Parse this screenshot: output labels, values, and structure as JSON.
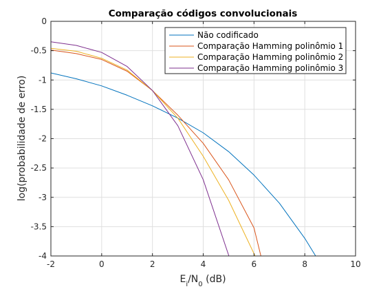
{
  "chart_data": {
    "type": "line",
    "title": "Comparação códigos convolucionais",
    "xlabel": {
      "base": "E",
      "sub1": "i",
      "mid": "/N",
      "sub2": "0",
      "tail": " (dB)"
    },
    "ylabel": "log(probabilidade de erro)",
    "xlim": [
      -2,
      10
    ],
    "ylim": [
      -4,
      0
    ],
    "xticks": [
      -2,
      0,
      2,
      4,
      6,
      8,
      10
    ],
    "yticks": [
      0,
      -0.5,
      -1,
      -1.5,
      -2,
      -2.5,
      -3,
      -3.5,
      -4
    ],
    "grid": true,
    "legend_position": "top-right",
    "series": [
      {
        "name": "Não codificado",
        "color": "#0072BD",
        "x": [
          -2,
          -1,
          0,
          1,
          2,
          3,
          4,
          5,
          6,
          7,
          8,
          8.5
        ],
        "y": [
          -0.88,
          -0.98,
          -1.1,
          -1.26,
          -1.44,
          -1.65,
          -1.9,
          -2.22,
          -2.62,
          -3.1,
          -3.7,
          -4.05
        ]
      },
      {
        "name": "Comparação Hamming polinômio 1",
        "color": "#D95319",
        "x": [
          -2,
          -1,
          0,
          1,
          2,
          3,
          4,
          5,
          6,
          6.3
        ],
        "y": [
          -0.49,
          -0.55,
          -0.65,
          -0.85,
          -1.18,
          -1.6,
          -2.08,
          -2.7,
          -3.52,
          -4.05
        ]
      },
      {
        "name": "Comparação Hamming polinômio 2",
        "color": "#EDB120",
        "x": [
          -2,
          -1,
          0,
          1,
          2,
          3,
          4,
          5,
          6.1
        ],
        "y": [
          -0.46,
          -0.51,
          -0.63,
          -0.83,
          -1.18,
          -1.65,
          -2.3,
          -3.05,
          -4.05
        ]
      },
      {
        "name": "Comparação Hamming polinômio 3",
        "color": "#7E2F8E",
        "x": [
          -2,
          -1,
          0,
          1,
          2,
          3,
          4,
          5.05
        ],
        "y": [
          -0.35,
          -0.41,
          -0.53,
          -0.77,
          -1.18,
          -1.78,
          -2.7,
          -4.05
        ]
      }
    ]
  }
}
